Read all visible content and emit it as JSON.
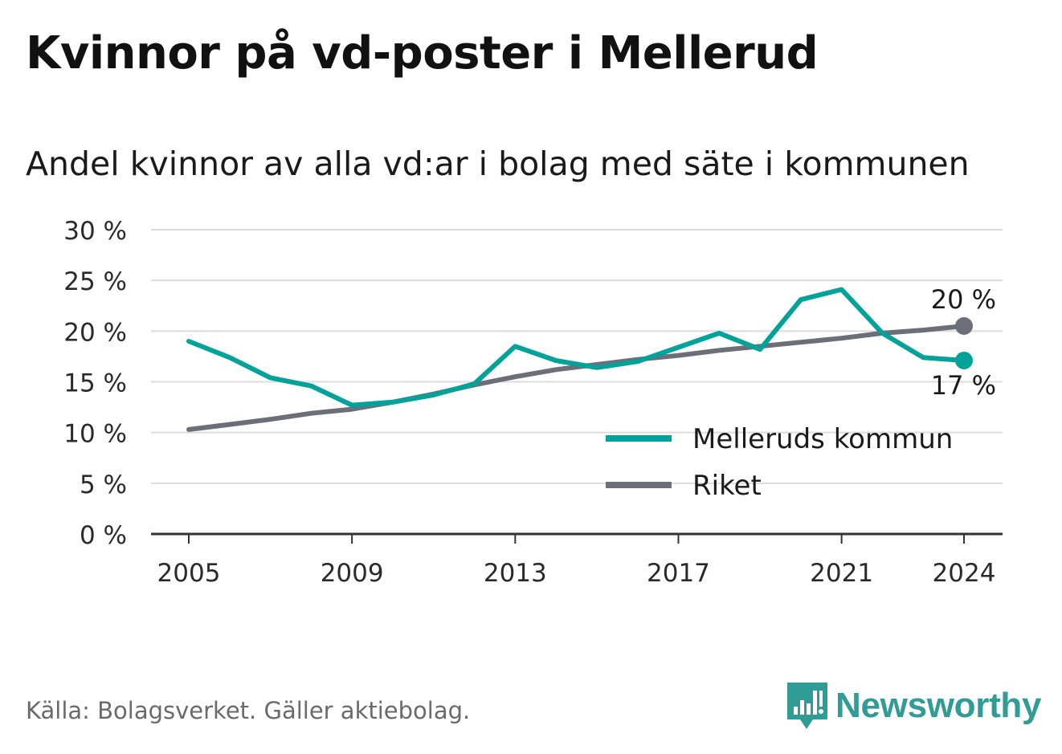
{
  "title": "Kvinnor på vd-poster i Mellerud",
  "subtitle": "Andel kvinnor av alla vd:ar i bolag med säte i kommunen",
  "source": "Källa: Bolagsverket. Gäller aktiebolag.",
  "brand": {
    "name": "Newsworthy",
    "logo_icon": "bar-chart-speech-bubble-icon",
    "color": "#2f9c95"
  },
  "chart_data": {
    "type": "line",
    "x": [
      2005,
      2006,
      2007,
      2008,
      2009,
      2010,
      2011,
      2012,
      2013,
      2014,
      2015,
      2016,
      2017,
      2018,
      2019,
      2020,
      2021,
      2022,
      2023,
      2024
    ],
    "series": [
      {
        "name": "Melleruds kommun",
        "color": "#00a29a",
        "values": [
          19.0,
          17.4,
          15.4,
          14.6,
          12.7,
          13.0,
          13.7,
          14.8,
          18.5,
          17.1,
          16.4,
          17.0,
          18.4,
          19.8,
          18.2,
          23.1,
          24.1,
          19.8,
          17.4,
          17.1
        ],
        "end_label": "17 %"
      },
      {
        "name": "Riket",
        "color": "#6e6e78",
        "values": [
          10.3,
          10.8,
          11.3,
          11.9,
          12.3,
          13.0,
          13.8,
          14.7,
          15.5,
          16.2,
          16.7,
          17.2,
          17.6,
          18.1,
          18.5,
          18.9,
          19.3,
          19.8,
          20.1,
          20.5
        ],
        "end_label": "20 %"
      }
    ],
    "x_ticks": [
      "2005",
      "2009",
      "2013",
      "2017",
      "2021",
      "2024"
    ],
    "y_ticks": [
      {
        "value": 0,
        "label": "0 %"
      },
      {
        "value": 5,
        "label": "5 %"
      },
      {
        "value": 10,
        "label": "10 %"
      },
      {
        "value": 15,
        "label": "15 %"
      },
      {
        "value": 20,
        "label": "20 %"
      },
      {
        "value": 25,
        "label": "25 %"
      },
      {
        "value": 30,
        "label": "30 %"
      }
    ],
    "ylim": [
      0,
      30
    ],
    "grid": true,
    "legend_position": "bottom-right"
  }
}
